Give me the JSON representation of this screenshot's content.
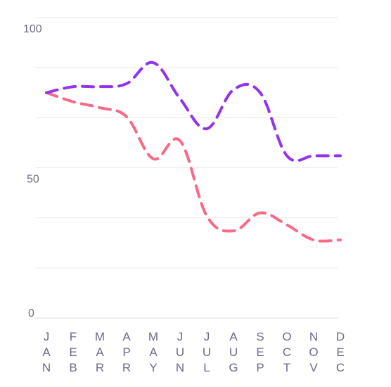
{
  "chart_data": {
    "type": "line",
    "categories": [
      "JAN",
      "FEB",
      "MAR",
      "APR",
      "MAY",
      "JUN",
      "JUL",
      "AUG",
      "SEP",
      "OCT",
      "NOV",
      "DEC"
    ],
    "series": [
      {
        "values": [
          75,
          77,
          77,
          78,
          85,
          73,
          63,
          76,
          75,
          54,
          54,
          54
        ],
        "color": "#9333ea",
        "style": "dashed"
      },
      {
        "values": [
          75,
          72,
          70,
          67,
          53,
          59,
          34,
          29,
          35,
          31,
          26,
          26
        ],
        "color": "#f86a86",
        "style": "dashed"
      }
    ],
    "ylim": [
      0,
      100
    ],
    "yticks": [
      0,
      50,
      100
    ],
    "grid": true,
    "xlabel": "",
    "ylabel": "",
    "title": ""
  }
}
